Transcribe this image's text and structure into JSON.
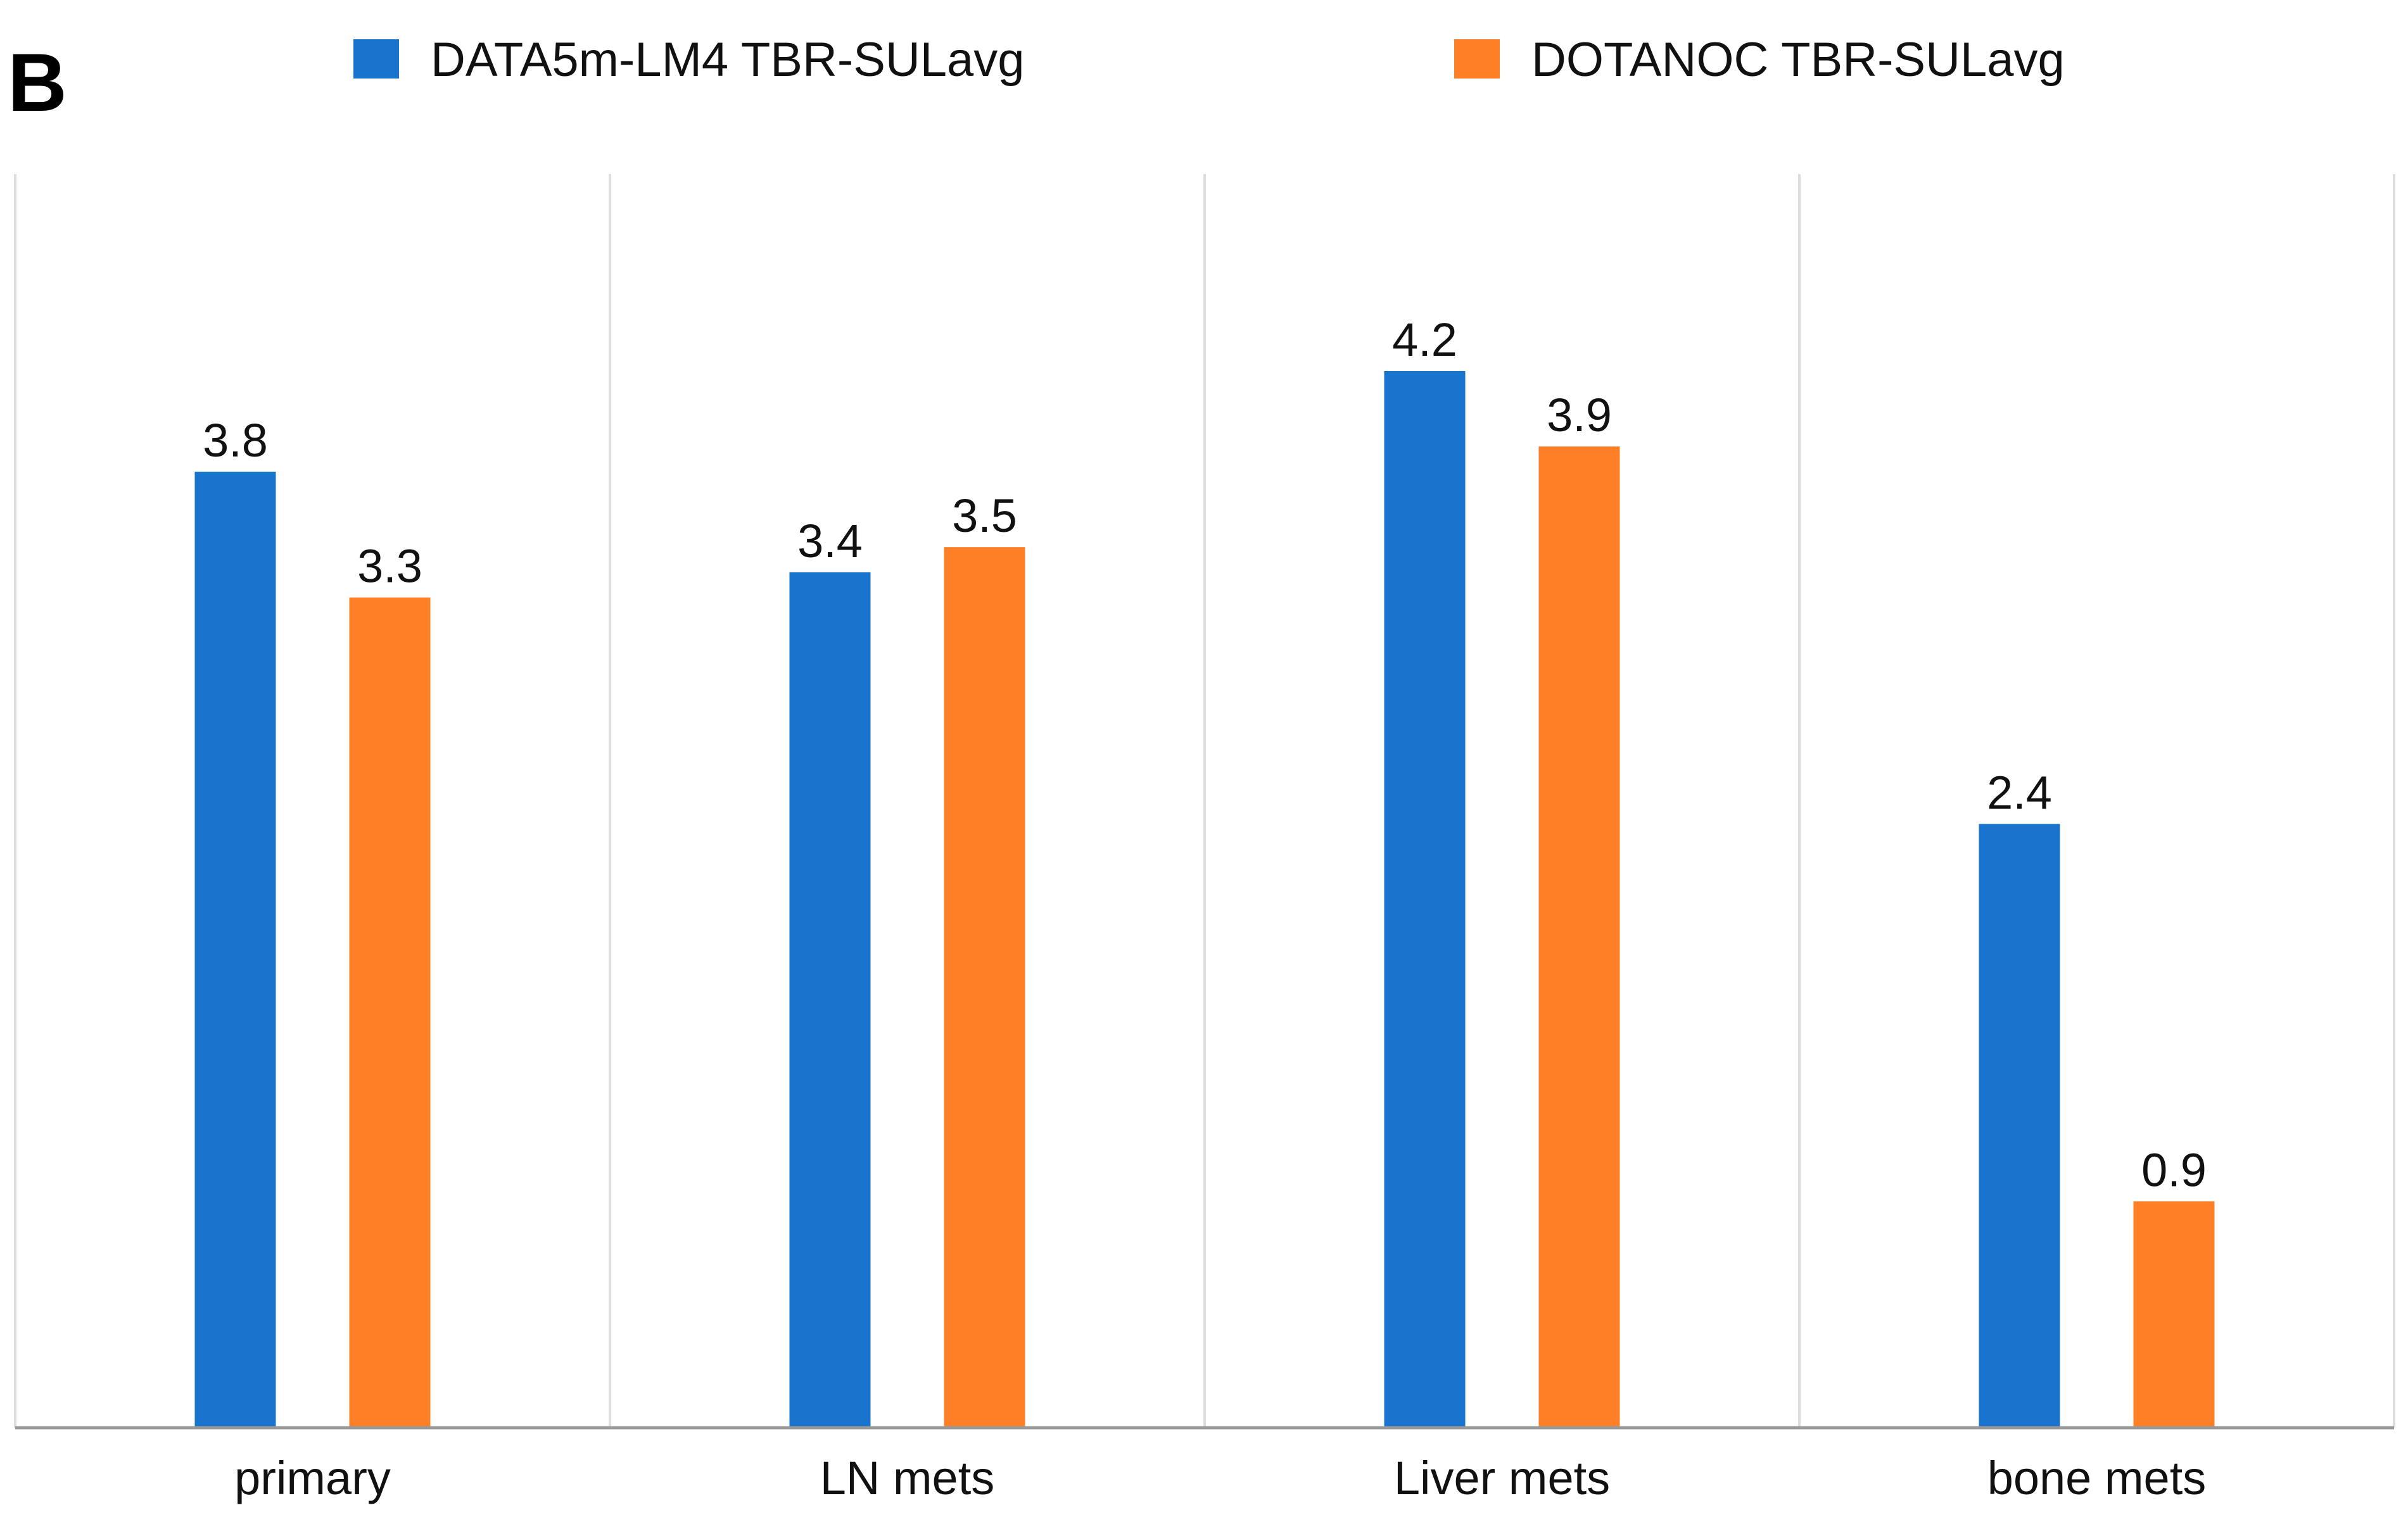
{
  "panel_label": "B",
  "colors": {
    "series_1": "#1874CD",
    "series_2": "#FF7F27",
    "gridline": "#dddddd",
    "axis": "#999999"
  },
  "chart_data": {
    "type": "bar",
    "title": "",
    "xlabel": "",
    "ylabel": "",
    "ylim": [
      0,
      5
    ],
    "grid": "vertical separators between categories",
    "legend_position": "top",
    "categories": [
      "primary",
      "LN mets",
      "Liver mets",
      "bone mets"
    ],
    "series": [
      {
        "name": "DATA5m-LM4 TBR-SULavg",
        "values": [
          3.8,
          3.4,
          4.2,
          2.4
        ],
        "labels": [
          "3.8",
          "3.4",
          "4.2",
          "2.4"
        ]
      },
      {
        "name": "DOTANOC TBR-SULavg",
        "values": [
          3.3,
          3.5,
          3.9,
          0.9
        ],
        "labels": [
          "3.3",
          "3.5",
          "3.9",
          "0.9"
        ]
      }
    ]
  }
}
